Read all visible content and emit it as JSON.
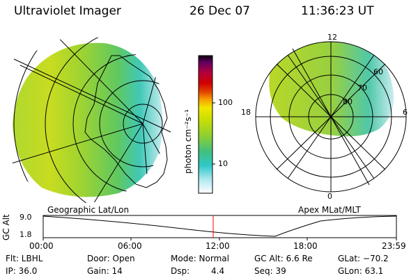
{
  "header": {
    "instrument": "Ultraviolet Imager",
    "date": "26 Dec 07",
    "time": "11:36:23 UT"
  },
  "colors": {
    "background": "#ffffff",
    "line": "#000000",
    "current_time_marker": "#ff0000",
    "image_low": "#40c8c0",
    "image_mid": "#a8d820",
    "image_high": "#f0f000"
  },
  "colorbar": {
    "unit_label": "photon cm⁻²s⁻¹",
    "ticks": [
      "100",
      "10"
    ],
    "scale": "log",
    "stops": [
      "#ffffff",
      "#b0e8f0",
      "#30c8c8",
      "#30c0a0",
      "#60c840",
      "#a0d020",
      "#d8e000",
      "#f0e800",
      "#f8b000",
      "#f07000",
      "#e02000",
      "#c00030",
      "#800060",
      "#200020"
    ]
  },
  "geo_panel": {
    "title": "Geographic Lat/Lon"
  },
  "polar_panel": {
    "title": "Apex MLat/MLT",
    "mlt_labels": [
      "12",
      "18",
      "6",
      "0"
    ],
    "mlat_labels": [
      "60",
      "70",
      "80"
    ]
  },
  "altitude_plot": {
    "axis_label": "GC Alt",
    "y_ticks": [
      "9.0",
      "1.8"
    ],
    "x_ticks": [
      "00:00",
      "06:00",
      "12:00",
      "18:00",
      "23:59"
    ],
    "current_time_hours": 11.6
  },
  "info": {
    "filter": "Flt: LBHL",
    "door": "Door: Open",
    "mode": "Mode: Normal",
    "gc_alt": "GC Alt: 6.6 Re",
    "glat": "GLat: −70.2",
    "ip": "IP: 36.0",
    "gain": "Gain: 14",
    "dsp_label": "Dsp:",
    "dsp_value": "4.4",
    "seq": "Seq: 39",
    "glon": "GLon:  63.1"
  }
}
